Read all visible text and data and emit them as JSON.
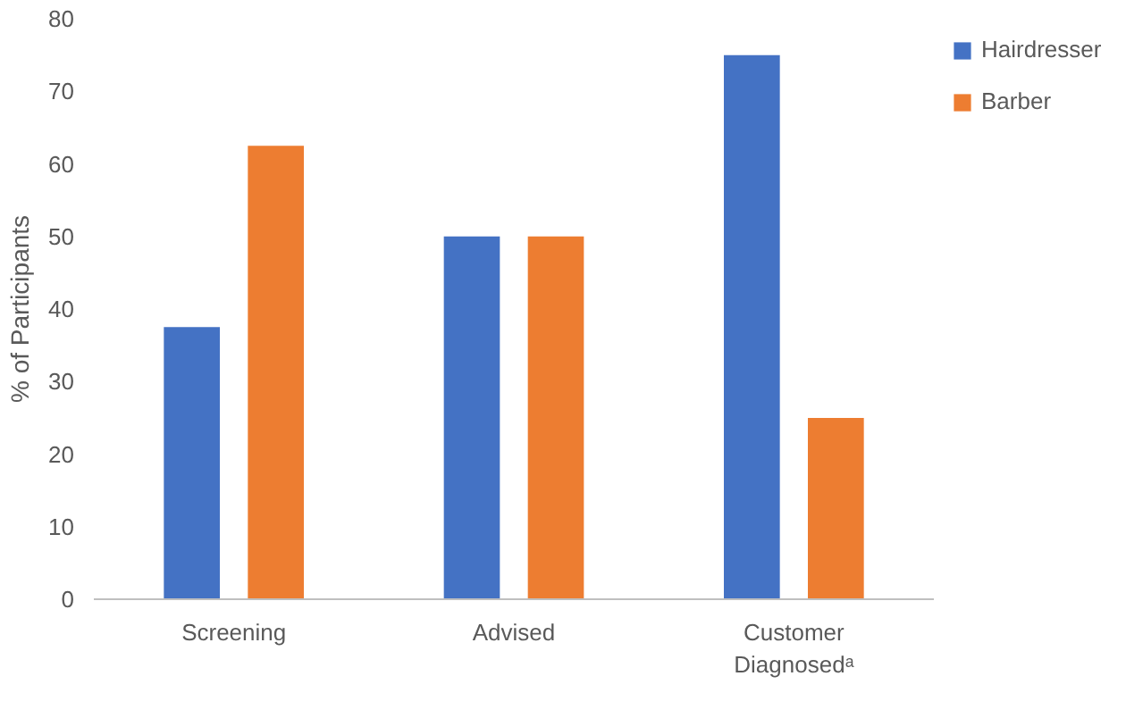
{
  "chart_data": {
    "type": "bar",
    "ylabel": "% of Participants",
    "categories": [
      "Screening",
      "Advised",
      "Customer\nDiagnosedᵃ"
    ],
    "series": [
      {
        "name": "Hairdresser",
        "color": "#4472c4",
        "values": [
          37.5,
          50,
          75
        ]
      },
      {
        "name": "Barber",
        "color": "#ed7d31",
        "values": [
          62.5,
          50,
          25
        ]
      }
    ],
    "ylim": [
      0,
      80
    ],
    "yticks": [
      0,
      10,
      20,
      30,
      40,
      50,
      60,
      70,
      80
    ],
    "grid": false,
    "legend": "right"
  }
}
